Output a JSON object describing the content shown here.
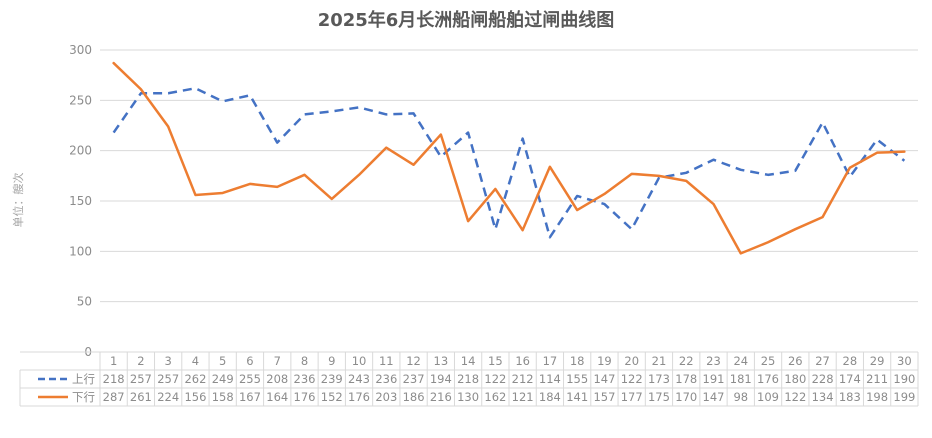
{
  "chart_data": {
    "type": "line",
    "title": "2025年6月长洲船闸船舶过闸曲线图",
    "ylabel": "单位：艘次",
    "ylim": [
      0,
      300
    ],
    "yticks": [
      0,
      50,
      100,
      150,
      200,
      250,
      300
    ],
    "grid": true,
    "legend_placement": "data-table-bottom",
    "categories": [
      "1",
      "2",
      "3",
      "4",
      "5",
      "6",
      "7",
      "8",
      "9",
      "10",
      "11",
      "12",
      "13",
      "14",
      "15",
      "16",
      "17",
      "18",
      "19",
      "20",
      "21",
      "22",
      "23",
      "24",
      "25",
      "26",
      "27",
      "28",
      "29",
      "30"
    ],
    "series": [
      {
        "name": "上行",
        "color": "#4472C4",
        "dash": "dashed",
        "values": [
          218,
          257,
          257,
          262,
          249,
          255,
          208,
          236,
          239,
          243,
          236,
          237,
          194,
          218,
          122,
          212,
          114,
          155,
          147,
          122,
          173,
          178,
          191,
          181,
          176,
          180,
          228,
          174,
          211,
          190
        ]
      },
      {
        "name": "下行",
        "color": "#ED7D31",
        "dash": "solid",
        "values": [
          287,
          261,
          224,
          156,
          158,
          167,
          164,
          176,
          152,
          176,
          203,
          186,
          216,
          130,
          162,
          121,
          184,
          141,
          157,
          177,
          175,
          170,
          147,
          98,
          109,
          122,
          134,
          183,
          198,
          199
        ]
      }
    ]
  }
}
